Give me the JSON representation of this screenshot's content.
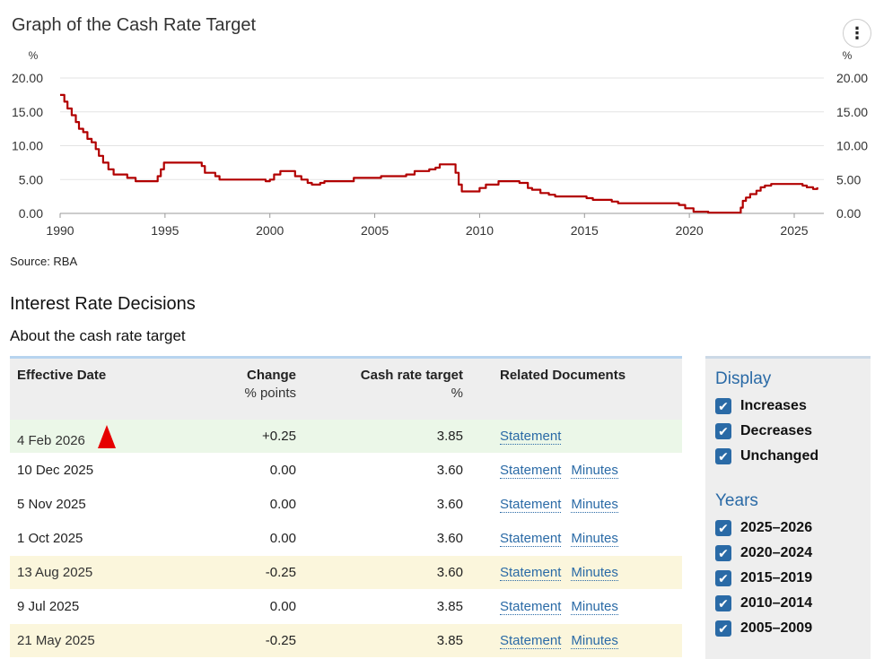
{
  "chart": {
    "title": "Graph of the Cash Rate Target",
    "menu_glyph": "⋮",
    "menu_icon": "kebab-menu-icon",
    "line_color": "#b20000",
    "source": "Source: RBA"
  },
  "chart_data": {
    "type": "line",
    "title": "Graph of the Cash Rate Target",
    "ylabel": "%",
    "ylabel_right": "%",
    "ylim": [
      0,
      20
    ],
    "xlim": [
      1990,
      2026.1
    ],
    "y_ticks": [
      "20.00",
      "15.00",
      "10.00",
      "5.00",
      "0.00"
    ],
    "x_ticks": [
      "1990",
      "1995",
      "2000",
      "2005",
      "2010",
      "2015",
      "2020",
      "2025"
    ],
    "grid": true,
    "series": [
      {
        "values": [
          [
            1990.0,
            17.5
          ],
          [
            1990.2,
            16.5
          ],
          [
            1990.35,
            15.5
          ],
          [
            1990.55,
            14.5
          ],
          [
            1990.75,
            13.5
          ],
          [
            1990.9,
            12.5
          ],
          [
            1991.1,
            12.0
          ],
          [
            1991.3,
            11.0
          ],
          [
            1991.5,
            10.5
          ],
          [
            1991.7,
            9.5
          ],
          [
            1991.85,
            8.5
          ],
          [
            1992.05,
            7.5
          ],
          [
            1992.3,
            6.5
          ],
          [
            1992.55,
            5.75
          ],
          [
            1993.0,
            5.75
          ],
          [
            1993.2,
            5.25
          ],
          [
            1993.6,
            4.75
          ],
          [
            1994.6,
            4.75
          ],
          [
            1994.65,
            5.5
          ],
          [
            1994.8,
            6.5
          ],
          [
            1994.95,
            7.5
          ],
          [
            1996.6,
            7.5
          ],
          [
            1996.75,
            7.0
          ],
          [
            1996.9,
            6.0
          ],
          [
            1997.4,
            5.5
          ],
          [
            1997.6,
            5.0
          ],
          [
            1999.0,
            5.0
          ],
          [
            1999.8,
            4.75
          ],
          [
            2000.0,
            5.0
          ],
          [
            2000.2,
            5.75
          ],
          [
            2000.5,
            6.25
          ],
          [
            2001.0,
            6.25
          ],
          [
            2001.2,
            5.5
          ],
          [
            2001.5,
            5.0
          ],
          [
            2001.8,
            4.5
          ],
          [
            2002.0,
            4.25
          ],
          [
            2002.4,
            4.5
          ],
          [
            2002.6,
            4.75
          ],
          [
            2003.9,
            4.75
          ],
          [
            2004.0,
            5.25
          ],
          [
            2005.2,
            5.25
          ],
          [
            2005.3,
            5.5
          ],
          [
            2006.5,
            5.75
          ],
          [
            2006.9,
            6.25
          ],
          [
            2007.6,
            6.5
          ],
          [
            2007.9,
            6.75
          ],
          [
            2008.1,
            7.25
          ],
          [
            2008.7,
            7.25
          ],
          [
            2008.85,
            6.0
          ],
          [
            2009.0,
            4.25
          ],
          [
            2009.15,
            3.25
          ],
          [
            2009.8,
            3.25
          ],
          [
            2010.0,
            3.75
          ],
          [
            2010.3,
            4.25
          ],
          [
            2010.9,
            4.75
          ],
          [
            2011.9,
            4.5
          ],
          [
            2012.3,
            3.75
          ],
          [
            2012.5,
            3.5
          ],
          [
            2012.9,
            3.0
          ],
          [
            2013.3,
            2.75
          ],
          [
            2013.6,
            2.5
          ],
          [
            2015.1,
            2.25
          ],
          [
            2015.4,
            2.0
          ],
          [
            2016.3,
            1.75
          ],
          [
            2016.6,
            1.5
          ],
          [
            2019.4,
            1.5
          ],
          [
            2019.5,
            1.25
          ],
          [
            2019.8,
            0.75
          ],
          [
            2020.2,
            0.25
          ],
          [
            2020.9,
            0.1
          ],
          [
            2022.35,
            0.1
          ],
          [
            2022.45,
            0.85
          ],
          [
            2022.55,
            1.85
          ],
          [
            2022.7,
            2.35
          ],
          [
            2022.9,
            2.85
          ],
          [
            2023.2,
            3.35
          ],
          [
            2023.4,
            3.85
          ],
          [
            2023.6,
            4.1
          ],
          [
            2023.9,
            4.35
          ],
          [
            2025.1,
            4.35
          ],
          [
            2025.4,
            4.1
          ],
          [
            2025.6,
            3.85
          ],
          [
            2025.9,
            3.6
          ],
          [
            2026.1,
            3.85
          ]
        ]
      }
    ]
  },
  "decisions": {
    "heading": "Interest Rate Decisions",
    "about_link": "About the cash rate target",
    "headers": {
      "date": "Effective Date",
      "change": "Change",
      "change_sub": "% points",
      "rate": "Cash rate target",
      "rate_sub": "%",
      "docs": "Related Documents"
    },
    "rows": [
      {
        "date": "4 Feb 2026",
        "change": "+0.25",
        "rate": "3.85",
        "statement": "Statement",
        "minutes": "",
        "kind": "inc",
        "marker": true
      },
      {
        "date": "10 Dec 2025",
        "change": "0.00",
        "rate": "3.60",
        "statement": "Statement",
        "minutes": "Minutes",
        "kind": "unch",
        "marker": false
      },
      {
        "date": "5 Nov 2025",
        "change": "0.00",
        "rate": "3.60",
        "statement": "Statement",
        "minutes": "Minutes",
        "kind": "unch",
        "marker": false
      },
      {
        "date": "1 Oct 2025",
        "change": "0.00",
        "rate": "3.60",
        "statement": "Statement",
        "minutes": "Minutes",
        "kind": "unch",
        "marker": false
      },
      {
        "date": "13 Aug 2025",
        "change": "-0.25",
        "rate": "3.60",
        "statement": "Statement",
        "minutes": "Minutes",
        "kind": "dec",
        "marker": false
      },
      {
        "date": "9 Jul 2025",
        "change": "0.00",
        "rate": "3.85",
        "statement": "Statement",
        "minutes": "Minutes",
        "kind": "unch",
        "marker": false
      },
      {
        "date": "21 May 2025",
        "change": "-0.25",
        "rate": "3.85",
        "statement": "Statement",
        "minutes": "Minutes",
        "kind": "dec",
        "marker": false
      }
    ],
    "colors": {
      "increase_row": "#ebf7e8",
      "decrease_row": "#fbf6dc",
      "link": "#2a6aa6",
      "marker": "#e60000"
    }
  },
  "display_panel": {
    "heading": "Display",
    "options": [
      {
        "label": "Increases",
        "checked": true
      },
      {
        "label": "Decreases",
        "checked": true
      },
      {
        "label": "Unchanged",
        "checked": true
      }
    ],
    "years_heading": "Years",
    "years": [
      {
        "label": "2025–2026",
        "checked": true
      },
      {
        "label": "2020–2024",
        "checked": true
      },
      {
        "label": "2015–2019",
        "checked": true
      },
      {
        "label": "2010–2014",
        "checked": true
      },
      {
        "label": "2005–2009",
        "checked": true
      }
    ],
    "check_glyph": "✔"
  }
}
